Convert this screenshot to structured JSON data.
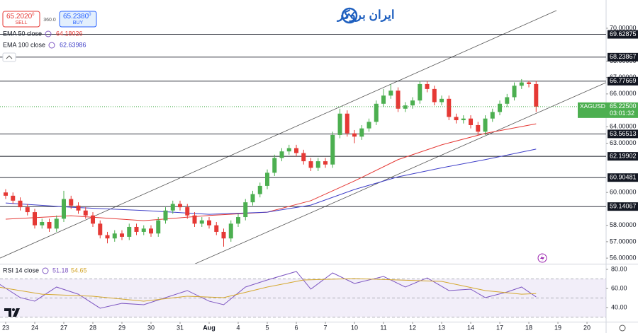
{
  "header": {
    "logo_text": "ایران بروکر",
    "sell": {
      "price": "65.2020",
      "pip": "0",
      "label": "SELL"
    },
    "spread": "360.0",
    "buy": {
      "price": "65.2380",
      "pip": "0",
      "label": "BUY"
    }
  },
  "chart_data": {
    "type": "candlestick",
    "symbol": "XAGUSD",
    "timer": "03:01:32",
    "last_price": {
      "value": 65.225,
      "label": "65.22500"
    },
    "up_color": "#4caf50",
    "down_color": "#e53935",
    "xlim": [
      -0.78,
      82.63
    ],
    "ylim": [
      55.66,
      71.72
    ],
    "xticks": [
      {
        "value": 0,
        "label": "23"
      },
      {
        "value": 4,
        "label": "24"
      },
      {
        "value": 8,
        "label": "27"
      },
      {
        "value": 12,
        "label": "28"
      },
      {
        "value": 16,
        "label": "29"
      },
      {
        "value": 20,
        "label": "30"
      },
      {
        "value": 24,
        "label": "31"
      },
      {
        "value": 28,
        "label": "Aug"
      },
      {
        "value": 32,
        "label": "4"
      },
      {
        "value": 36,
        "label": "5"
      },
      {
        "value": 40,
        "label": "6"
      },
      {
        "value": 44,
        "label": "7"
      },
      {
        "value": 48,
        "label": "10"
      },
      {
        "value": 52,
        "label": "11"
      },
      {
        "value": 56,
        "label": "12"
      },
      {
        "value": 60,
        "label": "13"
      },
      {
        "value": 64,
        "label": "14"
      },
      {
        "value": 68,
        "label": "17"
      },
      {
        "value": 72,
        "label": "18"
      },
      {
        "value": 76,
        "label": "19"
      },
      {
        "value": 80,
        "label": "20"
      }
    ],
    "yticks": [
      {
        "value": 70,
        "label": "70.00000"
      },
      {
        "value": 68,
        "label": "68.00000"
      },
      {
        "value": 67,
        "label": "67.00000"
      },
      {
        "value": 66,
        "label": "66.00000"
      },
      {
        "value": 64,
        "label": "64.00000"
      },
      {
        "value": 63,
        "label": "63.00000"
      },
      {
        "value": 60,
        "label": "60.00000"
      },
      {
        "value": 58,
        "label": "58.00000"
      },
      {
        "value": 57,
        "label": "57.00000"
      },
      {
        "value": 56,
        "label": "56.00000"
      }
    ],
    "open": [
      60.0,
      59.8,
      59.5,
      59.1,
      58.8,
      58.0,
      58.2,
      57.8,
      58.4,
      59.6,
      59.2,
      58.9,
      58.6,
      58.1,
      57.4,
      57.2,
      57.5,
      57.3,
      57.9,
      57.6,
      57.8,
      57.5,
      58.3,
      58.9,
      59.3,
      59.1,
      58.6,
      58.1,
      58.3,
      58.0,
      57.6,
      57.2,
      58.1,
      58.5,
      59.4,
      59.9,
      60.4,
      61.2,
      62.1,
      62.5,
      62.7,
      62.4,
      61.9,
      61.5,
      61.9,
      61.7,
      63.5,
      64.8,
      63.6,
      63.4,
      63.9,
      64.3,
      65.4,
      65.9,
      66.2,
      65.1,
      65.3,
      65.6,
      66.6,
      66.3,
      65.5,
      65.7,
      64.6,
      64.4,
      64.5,
      64.1,
      63.7,
      64.5,
      64.9,
      65.4,
      65.8,
      66.5,
      66.7,
      66.6
    ],
    "high": [
      60.2,
      60.0,
      59.7,
      59.3,
      59.0,
      58.4,
      58.4,
      58.6,
      60.1,
      59.8,
      59.4,
      59.1,
      58.8,
      58.3,
      57.6,
      57.7,
      57.7,
      58.1,
      58.1,
      58.0,
      58.0,
      58.5,
      59.1,
      59.5,
      59.5,
      59.3,
      58.8,
      58.5,
      58.5,
      58.2,
      57.8,
      58.3,
      58.7,
      59.6,
      60.1,
      60.6,
      61.4,
      62.3,
      62.7,
      62.9,
      62.9,
      62.6,
      62.1,
      62.1,
      62.1,
      63.7,
      65.1,
      65.0,
      63.8,
      64.1,
      64.5,
      65.6,
      66.3,
      66.6,
      66.4,
      65.5,
      65.8,
      66.8,
      66.8,
      66.5,
      65.9,
      65.9,
      64.8,
      64.7,
      64.7,
      64.3,
      64.7,
      65.1,
      65.6,
      66.0,
      66.7,
      66.9,
      66.8,
      66.8
    ],
    "low": [
      59.6,
      59.3,
      58.9,
      58.6,
      57.8,
      57.8,
      57.6,
      57.6,
      58.2,
      59.0,
      58.7,
      58.4,
      57.9,
      57.2,
      56.9,
      57.0,
      57.1,
      57.1,
      57.4,
      57.4,
      57.3,
      57.3,
      58.1,
      58.7,
      58.9,
      58.4,
      57.9,
      57.9,
      57.8,
      57.4,
      56.7,
      57.0,
      57.9,
      58.3,
      59.2,
      59.7,
      60.2,
      61.0,
      61.9,
      62.3,
      62.2,
      61.7,
      61.3,
      61.3,
      61.5,
      61.5,
      63.3,
      63.4,
      63.0,
      63.2,
      63.7,
      64.1,
      65.2,
      65.7,
      64.9,
      64.9,
      65.1,
      65.4,
      66.1,
      65.3,
      65.3,
      64.4,
      64.2,
      64.2,
      63.9,
      63.5,
      63.5,
      64.3,
      64.7,
      65.2,
      65.6,
      66.3,
      66.4,
      64.9
    ],
    "close": [
      59.8,
      59.5,
      59.1,
      58.8,
      58.0,
      58.2,
      57.8,
      58.4,
      59.6,
      59.2,
      58.9,
      58.6,
      58.1,
      57.4,
      57.2,
      57.5,
      57.3,
      57.9,
      57.6,
      57.8,
      57.5,
      58.3,
      58.9,
      59.3,
      59.1,
      58.6,
      58.1,
      58.3,
      58.0,
      57.6,
      57.2,
      58.1,
      58.5,
      59.4,
      59.9,
      60.4,
      61.2,
      62.1,
      62.5,
      62.7,
      62.4,
      61.9,
      61.5,
      61.9,
      61.7,
      63.5,
      64.8,
      63.6,
      63.4,
      63.9,
      64.3,
      65.4,
      65.9,
      66.2,
      65.1,
      65.3,
      65.6,
      66.6,
      66.3,
      65.5,
      65.7,
      64.6,
      64.4,
      64.5,
      64.1,
      63.7,
      64.5,
      64.9,
      65.4,
      65.8,
      66.5,
      66.7,
      66.6,
      65.225
    ],
    "overlays": [
      {
        "name": "EMA 50 close",
        "color": "#e53935",
        "x": [
          0,
          9,
          19,
          28,
          36,
          42,
          48,
          54,
          60,
          66,
          73
        ],
        "values": [
          58.37,
          58.58,
          58.28,
          58.6,
          58.8,
          59.5,
          60.7,
          62.0,
          62.9,
          63.6,
          64.18026
        ]
      },
      {
        "name": "EMA 100 close",
        "color": "#3f3fc8",
        "x": [
          0,
          9,
          19,
          28,
          36,
          42,
          48,
          54,
          60,
          66,
          73
        ],
        "values": [
          59.36,
          59.1,
          58.9,
          58.67,
          58.8,
          59.23,
          60.18,
          60.95,
          61.5,
          62.0,
          62.63986
        ]
      }
    ],
    "levels": [
      69.62875,
      68.23867,
      66.77669,
      63.56513,
      62.19902,
      60.90481,
      59.14067
    ],
    "channel": [
      {
        "x": [
          -0.78,
          75.8
        ],
        "y": [
          56.0,
          71.08
        ]
      },
      {
        "x": [
          26.05,
          84.1
        ],
        "y": [
          55.65,
          66.98
        ]
      }
    ],
    "rsi": {
      "name": "RSI 14 close",
      "ylim": [
        26.67,
        85.19
      ],
      "yticks": [
        {
          "value": 80,
          "label": "80.00"
        },
        {
          "value": 60,
          "label": "60.00"
        },
        {
          "value": 40,
          "label": "40.00"
        }
      ],
      "band": [
        30,
        70
      ],
      "mid": 50,
      "series": [
        {
          "color": "#7e57c2",
          "x": [
            -1,
            2,
            4,
            7,
            10,
            13,
            16,
            19,
            22,
            25,
            28,
            30,
            33,
            36,
            40,
            42,
            45,
            48,
            52,
            55,
            58,
            61,
            64,
            66,
            69,
            71,
            73
          ],
          "values": [
            65.2,
            50.4,
            46.7,
            61.5,
            54,
            39.3,
            44.4,
            43,
            50.4,
            57.8,
            46.7,
            43,
            61.5,
            68.9,
            77.8,
            59.3,
            76.3,
            65.2,
            72.6,
            61.5,
            71.1,
            57.8,
            59.3,
            50.4,
            56.3,
            61.5,
            51.18
          ]
        },
        {
          "color": "#d4a72c",
          "x": [
            -1,
            5,
            12,
            19,
            25,
            30,
            36,
            41,
            48,
            54,
            60,
            66,
            71,
            73
          ],
          "values": [
            61.5,
            54,
            51.9,
            46.7,
            51.9,
            50.4,
            61.5,
            68.9,
            70.4,
            68.9,
            67.4,
            57.8,
            54,
            54.65
          ]
        }
      ]
    }
  }
}
